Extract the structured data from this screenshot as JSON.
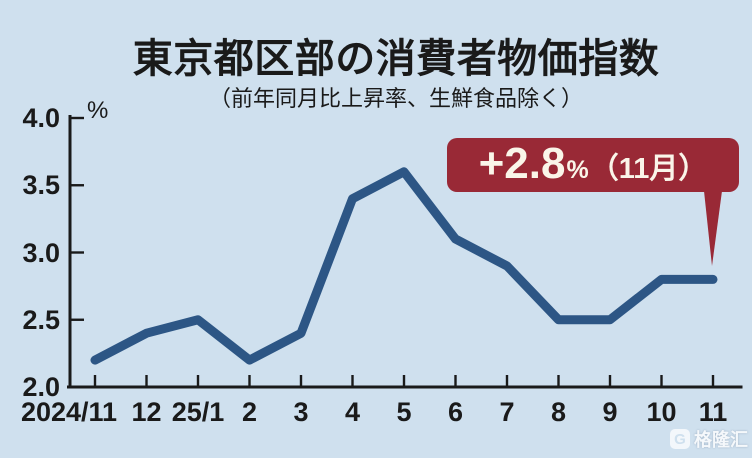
{
  "title": "東京都区部の消費者物価指数",
  "subtitle": "（前年同月比上昇率、生鮮食品除く）",
  "unit_label": "%",
  "annotation": {
    "value": "+2.8",
    "percent_sign": "%",
    "suffix": "（11月）"
  },
  "watermark": {
    "logo": "G",
    "text": "格隆汇"
  },
  "colors": {
    "background": "#cfe0ee",
    "line": "#2d5685",
    "axis": "#1a1a1a",
    "text": "#1a1a1a",
    "badge": "#992936",
    "badge_text": "#faf5e9"
  },
  "chart_data": {
    "type": "line",
    "title": "東京都区部の消費者物価指数",
    "subtitle": "（前年同月比上昇率、生鮮食品除く）",
    "ylabel": "%",
    "categories": [
      "2024/11",
      "12",
      "25/1",
      "2",
      "3",
      "4",
      "5",
      "6",
      "7",
      "8",
      "9",
      "10",
      "11"
    ],
    "values": [
      2.2,
      2.4,
      2.5,
      2.2,
      2.4,
      3.4,
      3.6,
      3.1,
      2.9,
      2.5,
      2.5,
      2.8,
      2.8
    ],
    "ylim": [
      2.0,
      4.0
    ],
    "yticks": [
      2.0,
      2.5,
      3.0,
      3.5,
      4.0
    ],
    "grid": false,
    "legend": "none",
    "annotation": "+2.8%（11月）"
  }
}
